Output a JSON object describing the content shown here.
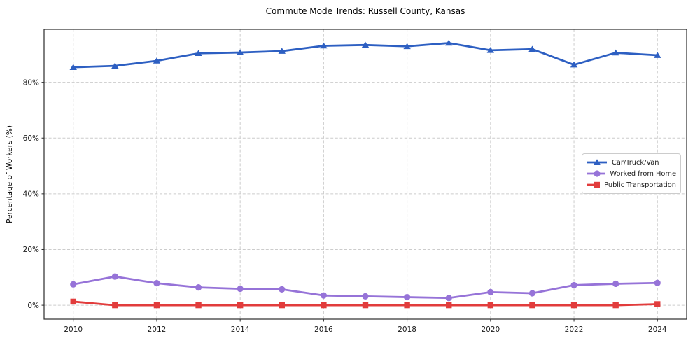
{
  "figure": {
    "background": "#ffffff"
  },
  "chart_data": {
    "type": "line",
    "title": "Commute Mode Trends: Russell County, Kansas",
    "xlabel": "",
    "ylabel": "Percentage of Workers (%)",
    "x": [
      2010,
      2011,
      2012,
      2013,
      2014,
      2015,
      2016,
      2017,
      2018,
      2019,
      2020,
      2021,
      2022,
      2023,
      2024
    ],
    "series": [
      {
        "name": "Car/Truck/Van",
        "color": "#2d5fc2",
        "marker": "triangle",
        "values": [
          85.4,
          85.9,
          87.7,
          90.4,
          90.7,
          91.2,
          93.1,
          93.4,
          92.9,
          94.1,
          91.5,
          91.9,
          86.3,
          90.6,
          89.7
        ]
      },
      {
        "name": "Worked from Home",
        "color": "#9673d8",
        "marker": "circle",
        "values": [
          7.5,
          10.3,
          7.9,
          6.4,
          5.9,
          5.7,
          3.5,
          3.2,
          2.9,
          2.6,
          4.7,
          4.3,
          7.2,
          7.7,
          8.0
        ]
      },
      {
        "name": "Public Transportation",
        "color": "#e23c3c",
        "marker": "square",
        "values": [
          1.3,
          0.0,
          0.0,
          0.0,
          0.0,
          0.0,
          0.0,
          0.0,
          0.0,
          0.0,
          0.0,
          0.0,
          0.0,
          0.0,
          0.4
        ]
      }
    ],
    "xticks": [
      2010,
      2012,
      2014,
      2016,
      2018,
      2020,
      2022,
      2024
    ],
    "xticklabels": [
      "2010",
      "2012",
      "2014",
      "2016",
      "2018",
      "2020",
      "2022",
      "2024"
    ],
    "yticks": [
      0,
      20,
      40,
      60,
      80
    ],
    "yticklabels": [
      "0%",
      "20%",
      "40%",
      "60%",
      "80%"
    ],
    "xlim": [
      2009.3,
      2024.7
    ],
    "ylim": [
      -5,
      99
    ],
    "grid": true,
    "grid_color": "#cccccc",
    "spine_color": "#2b2b2b",
    "legend_position": "center right"
  }
}
